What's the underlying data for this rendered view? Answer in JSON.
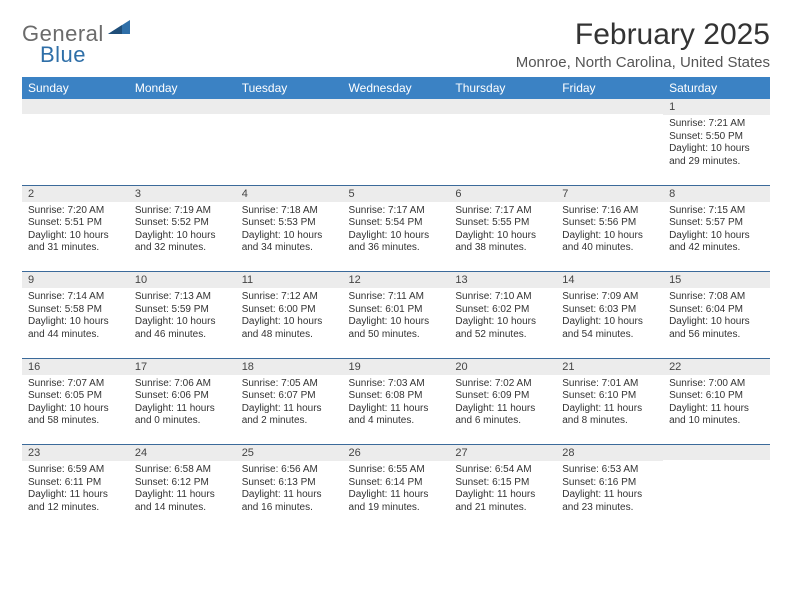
{
  "logo": {
    "word1": "General",
    "word2": "Blue"
  },
  "title": "February 2025",
  "location": "Monroe, North Carolina, United States",
  "colors": {
    "header_bg": "#3b82c4",
    "header_text": "#ffffff",
    "daynum_bg": "#ececec",
    "rule": "#3b6a9a",
    "logo_gray": "#6b6b6b",
    "logo_blue": "#2f6fa8"
  },
  "day_names": [
    "Sunday",
    "Monday",
    "Tuesday",
    "Wednesday",
    "Thursday",
    "Friday",
    "Saturday"
  ],
  "weeks": [
    [
      {
        "n": "",
        "sunrise": "",
        "sunset": "",
        "daylight": ""
      },
      {
        "n": "",
        "sunrise": "",
        "sunset": "",
        "daylight": ""
      },
      {
        "n": "",
        "sunrise": "",
        "sunset": "",
        "daylight": ""
      },
      {
        "n": "",
        "sunrise": "",
        "sunset": "",
        "daylight": ""
      },
      {
        "n": "",
        "sunrise": "",
        "sunset": "",
        "daylight": ""
      },
      {
        "n": "",
        "sunrise": "",
        "sunset": "",
        "daylight": ""
      },
      {
        "n": "1",
        "sunrise": "Sunrise: 7:21 AM",
        "sunset": "Sunset: 5:50 PM",
        "daylight": "Daylight: 10 hours and 29 minutes."
      }
    ],
    [
      {
        "n": "2",
        "sunrise": "Sunrise: 7:20 AM",
        "sunset": "Sunset: 5:51 PM",
        "daylight": "Daylight: 10 hours and 31 minutes."
      },
      {
        "n": "3",
        "sunrise": "Sunrise: 7:19 AM",
        "sunset": "Sunset: 5:52 PM",
        "daylight": "Daylight: 10 hours and 32 minutes."
      },
      {
        "n": "4",
        "sunrise": "Sunrise: 7:18 AM",
        "sunset": "Sunset: 5:53 PM",
        "daylight": "Daylight: 10 hours and 34 minutes."
      },
      {
        "n": "5",
        "sunrise": "Sunrise: 7:17 AM",
        "sunset": "Sunset: 5:54 PM",
        "daylight": "Daylight: 10 hours and 36 minutes."
      },
      {
        "n": "6",
        "sunrise": "Sunrise: 7:17 AM",
        "sunset": "Sunset: 5:55 PM",
        "daylight": "Daylight: 10 hours and 38 minutes."
      },
      {
        "n": "7",
        "sunrise": "Sunrise: 7:16 AM",
        "sunset": "Sunset: 5:56 PM",
        "daylight": "Daylight: 10 hours and 40 minutes."
      },
      {
        "n": "8",
        "sunrise": "Sunrise: 7:15 AM",
        "sunset": "Sunset: 5:57 PM",
        "daylight": "Daylight: 10 hours and 42 minutes."
      }
    ],
    [
      {
        "n": "9",
        "sunrise": "Sunrise: 7:14 AM",
        "sunset": "Sunset: 5:58 PM",
        "daylight": "Daylight: 10 hours and 44 minutes."
      },
      {
        "n": "10",
        "sunrise": "Sunrise: 7:13 AM",
        "sunset": "Sunset: 5:59 PM",
        "daylight": "Daylight: 10 hours and 46 minutes."
      },
      {
        "n": "11",
        "sunrise": "Sunrise: 7:12 AM",
        "sunset": "Sunset: 6:00 PM",
        "daylight": "Daylight: 10 hours and 48 minutes."
      },
      {
        "n": "12",
        "sunrise": "Sunrise: 7:11 AM",
        "sunset": "Sunset: 6:01 PM",
        "daylight": "Daylight: 10 hours and 50 minutes."
      },
      {
        "n": "13",
        "sunrise": "Sunrise: 7:10 AM",
        "sunset": "Sunset: 6:02 PM",
        "daylight": "Daylight: 10 hours and 52 minutes."
      },
      {
        "n": "14",
        "sunrise": "Sunrise: 7:09 AM",
        "sunset": "Sunset: 6:03 PM",
        "daylight": "Daylight: 10 hours and 54 minutes."
      },
      {
        "n": "15",
        "sunrise": "Sunrise: 7:08 AM",
        "sunset": "Sunset: 6:04 PM",
        "daylight": "Daylight: 10 hours and 56 minutes."
      }
    ],
    [
      {
        "n": "16",
        "sunrise": "Sunrise: 7:07 AM",
        "sunset": "Sunset: 6:05 PM",
        "daylight": "Daylight: 10 hours and 58 minutes."
      },
      {
        "n": "17",
        "sunrise": "Sunrise: 7:06 AM",
        "sunset": "Sunset: 6:06 PM",
        "daylight": "Daylight: 11 hours and 0 minutes."
      },
      {
        "n": "18",
        "sunrise": "Sunrise: 7:05 AM",
        "sunset": "Sunset: 6:07 PM",
        "daylight": "Daylight: 11 hours and 2 minutes."
      },
      {
        "n": "19",
        "sunrise": "Sunrise: 7:03 AM",
        "sunset": "Sunset: 6:08 PM",
        "daylight": "Daylight: 11 hours and 4 minutes."
      },
      {
        "n": "20",
        "sunrise": "Sunrise: 7:02 AM",
        "sunset": "Sunset: 6:09 PM",
        "daylight": "Daylight: 11 hours and 6 minutes."
      },
      {
        "n": "21",
        "sunrise": "Sunrise: 7:01 AM",
        "sunset": "Sunset: 6:10 PM",
        "daylight": "Daylight: 11 hours and 8 minutes."
      },
      {
        "n": "22",
        "sunrise": "Sunrise: 7:00 AM",
        "sunset": "Sunset: 6:10 PM",
        "daylight": "Daylight: 11 hours and 10 minutes."
      }
    ],
    [
      {
        "n": "23",
        "sunrise": "Sunrise: 6:59 AM",
        "sunset": "Sunset: 6:11 PM",
        "daylight": "Daylight: 11 hours and 12 minutes."
      },
      {
        "n": "24",
        "sunrise": "Sunrise: 6:58 AM",
        "sunset": "Sunset: 6:12 PM",
        "daylight": "Daylight: 11 hours and 14 minutes."
      },
      {
        "n": "25",
        "sunrise": "Sunrise: 6:56 AM",
        "sunset": "Sunset: 6:13 PM",
        "daylight": "Daylight: 11 hours and 16 minutes."
      },
      {
        "n": "26",
        "sunrise": "Sunrise: 6:55 AM",
        "sunset": "Sunset: 6:14 PM",
        "daylight": "Daylight: 11 hours and 19 minutes."
      },
      {
        "n": "27",
        "sunrise": "Sunrise: 6:54 AM",
        "sunset": "Sunset: 6:15 PM",
        "daylight": "Daylight: 11 hours and 21 minutes."
      },
      {
        "n": "28",
        "sunrise": "Sunrise: 6:53 AM",
        "sunset": "Sunset: 6:16 PM",
        "daylight": "Daylight: 11 hours and 23 minutes."
      },
      {
        "n": "",
        "sunrise": "",
        "sunset": "",
        "daylight": ""
      }
    ]
  ]
}
